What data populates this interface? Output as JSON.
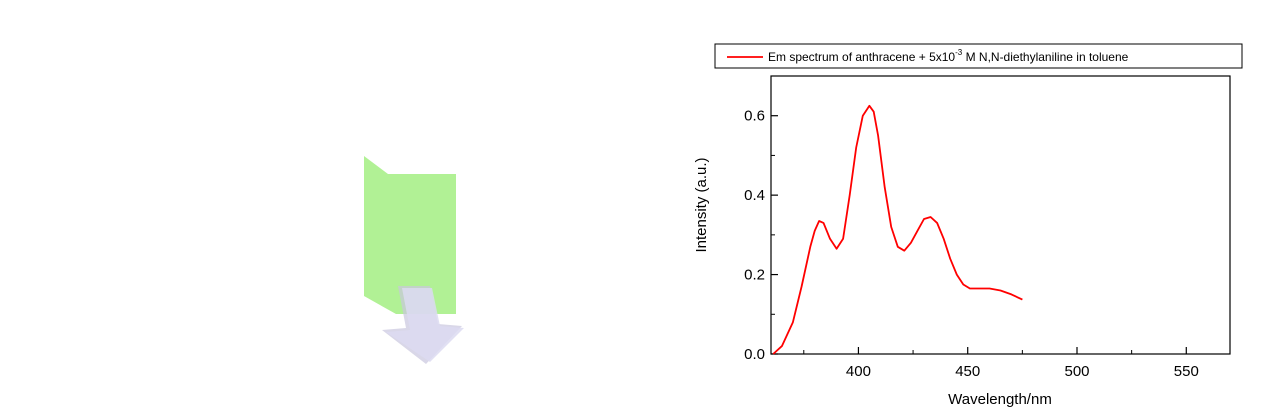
{
  "chart_data": {
    "type": "line",
    "title": "",
    "xlabel": "Wavelength/nm",
    "ylabel": "Intensity (a.u.)",
    "xlim": [
      360,
      570
    ],
    "ylim": [
      0,
      0.7
    ],
    "x_ticks": [
      400,
      450,
      500,
      550
    ],
    "y_ticks": [
      0.0,
      0.2,
      0.4,
      0.6
    ],
    "x_tick_labels": [
      "400",
      "450",
      "500",
      "550"
    ],
    "y_tick_labels": [
      "0.0",
      "0.2",
      "0.4",
      "0.6"
    ],
    "grid": false,
    "legend_position": "top",
    "legend": {
      "prefix": "Em spectrum of anthracene + 5x10",
      "superscript": "-3",
      "suffix": " M N,N-diethylaniline in toluene"
    },
    "series": [
      {
        "color": "#ff0000",
        "x": [
          361,
          365,
          370,
          374,
          378,
          380,
          382,
          384,
          387,
          390,
          393,
          396,
          399,
          402,
          405,
          407,
          409,
          412,
          415,
          418,
          421,
          424,
          427,
          430,
          433,
          436,
          439,
          442,
          445,
          448,
          451,
          455,
          460,
          465,
          470,
          475
        ],
        "y": [
          0.0,
          0.02,
          0.08,
          0.17,
          0.27,
          0.31,
          0.335,
          0.33,
          0.29,
          0.265,
          0.29,
          0.4,
          0.52,
          0.6,
          0.625,
          0.61,
          0.55,
          0.42,
          0.32,
          0.27,
          0.26,
          0.28,
          0.31,
          0.34,
          0.345,
          0.33,
          0.29,
          0.24,
          0.2,
          0.175,
          0.165,
          0.165,
          0.165,
          0.16,
          0.15,
          0.137
        ]
      }
    ]
  },
  "colors": {
    "line": "#ff0000",
    "panel_green": "#a8f08a",
    "arrow": "#d6d4ee"
  }
}
